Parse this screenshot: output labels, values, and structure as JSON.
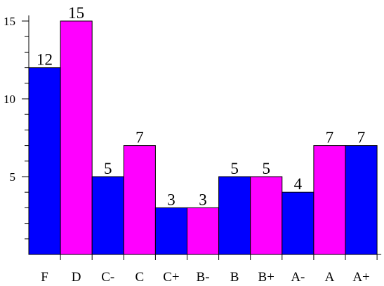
{
  "chart_data": {
    "type": "bar",
    "categories": [
      "F",
      "D",
      "C-",
      "C",
      "C+",
      "B-",
      "B",
      "B+",
      "A-",
      "A",
      "A+"
    ],
    "values": [
      12,
      15,
      5,
      7,
      3,
      3,
      5,
      5,
      4,
      7,
      7
    ],
    "bar_colors": [
      "#0000ff",
      "#ff00ff",
      "#0000ff",
      "#ff00ff",
      "#0000ff",
      "#ff00ff",
      "#0000ff",
      "#ff00ff",
      "#0000ff",
      "#ff00ff",
      "#0000ff"
    ],
    "ylim": [
      0,
      15
    ],
    "y_major_ticks": [
      5,
      10,
      15
    ],
    "y_minor_step": 1,
    "title": "",
    "xlabel": "",
    "ylabel": "",
    "grid": false,
    "legend": "none"
  }
}
